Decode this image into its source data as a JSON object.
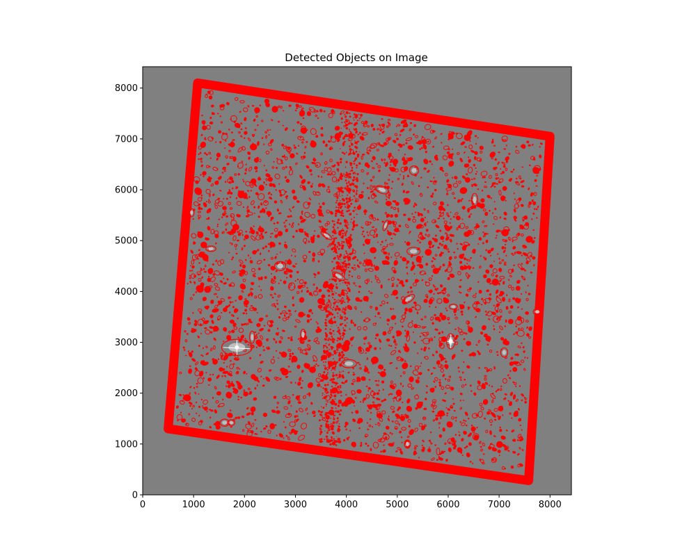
{
  "chart_data": {
    "type": "scatter",
    "title": "Detected Objects on Image",
    "xlabel": "",
    "ylabel": "",
    "xlim": [
      0,
      8420
    ],
    "ylim": [
      0,
      8420
    ],
    "xticks": [
      0,
      1000,
      2000,
      3000,
      4000,
      5000,
      6000,
      7000,
      8000
    ],
    "yticks": [
      0,
      1000,
      2000,
      3000,
      4000,
      5000,
      6000,
      7000,
      8000
    ],
    "grid": false,
    "legend": "none",
    "background_color": "#808080",
    "marker_color": "#ff0000",
    "footprint_corners": [
      [
        1080,
        8100
      ],
      [
        8000,
        7050
      ],
      [
        7580,
        280
      ],
      [
        500,
        1300
      ]
    ],
    "bright_objects": [
      {
        "x": 1850,
        "y": 2900,
        "a": 300,
        "b": 160,
        "angle": 0,
        "star": true
      },
      {
        "x": 2700,
        "y": 4500,
        "a": 110,
        "b": 90,
        "angle": 0,
        "star": false
      },
      {
        "x": 6050,
        "y": 3020,
        "a": 80,
        "b": 150,
        "angle": 0,
        "star": true
      },
      {
        "x": 5220,
        "y": 3850,
        "a": 140,
        "b": 60,
        "angle": -35,
        "star": false
      },
      {
        "x": 3850,
        "y": 4300,
        "a": 140,
        "b": 55,
        "angle": 30,
        "star": false
      },
      {
        "x": 6100,
        "y": 3700,
        "a": 80,
        "b": 50,
        "angle": 0,
        "star": false
      },
      {
        "x": 4050,
        "y": 2580,
        "a": 150,
        "b": 80,
        "angle": 0,
        "star": false
      },
      {
        "x": 1610,
        "y": 1420,
        "a": 90,
        "b": 70,
        "angle": 0,
        "star": false
      },
      {
        "x": 1740,
        "y": 1420,
        "a": 70,
        "b": 60,
        "angle": 0,
        "star": false
      },
      {
        "x": 5320,
        "y": 4790,
        "a": 130,
        "b": 80,
        "angle": 0,
        "star": false
      },
      {
        "x": 4770,
        "y": 5300,
        "a": 40,
        "b": 110,
        "angle": 20,
        "star": false
      },
      {
        "x": 3610,
        "y": 5100,
        "a": 130,
        "b": 45,
        "angle": 35,
        "star": false
      },
      {
        "x": 1340,
        "y": 4840,
        "a": 100,
        "b": 55,
        "angle": 0,
        "star": false
      },
      {
        "x": 6520,
        "y": 5800,
        "a": 60,
        "b": 130,
        "angle": 0,
        "star": false
      },
      {
        "x": 7750,
        "y": 3600,
        "a": 80,
        "b": 60,
        "angle": 0,
        "star": false
      },
      {
        "x": 2150,
        "y": 3100,
        "a": 50,
        "b": 120,
        "angle": 0,
        "star": false
      },
      {
        "x": 4700,
        "y": 6000,
        "a": 140,
        "b": 70,
        "angle": 20,
        "star": false
      },
      {
        "x": 5330,
        "y": 6380,
        "a": 90,
        "b": 90,
        "angle": 0,
        "star": false
      },
      {
        "x": 3150,
        "y": 3150,
        "a": 50,
        "b": 110,
        "angle": 0,
        "star": false
      },
      {
        "x": 7100,
        "y": 2800,
        "a": 70,
        "b": 90,
        "angle": 0,
        "star": false
      },
      {
        "x": 5200,
        "y": 1000,
        "a": 60,
        "b": 80,
        "angle": 0,
        "star": false
      },
      {
        "x": 960,
        "y": 5550,
        "a": 50,
        "b": 80,
        "angle": 0,
        "star": false
      }
    ]
  }
}
